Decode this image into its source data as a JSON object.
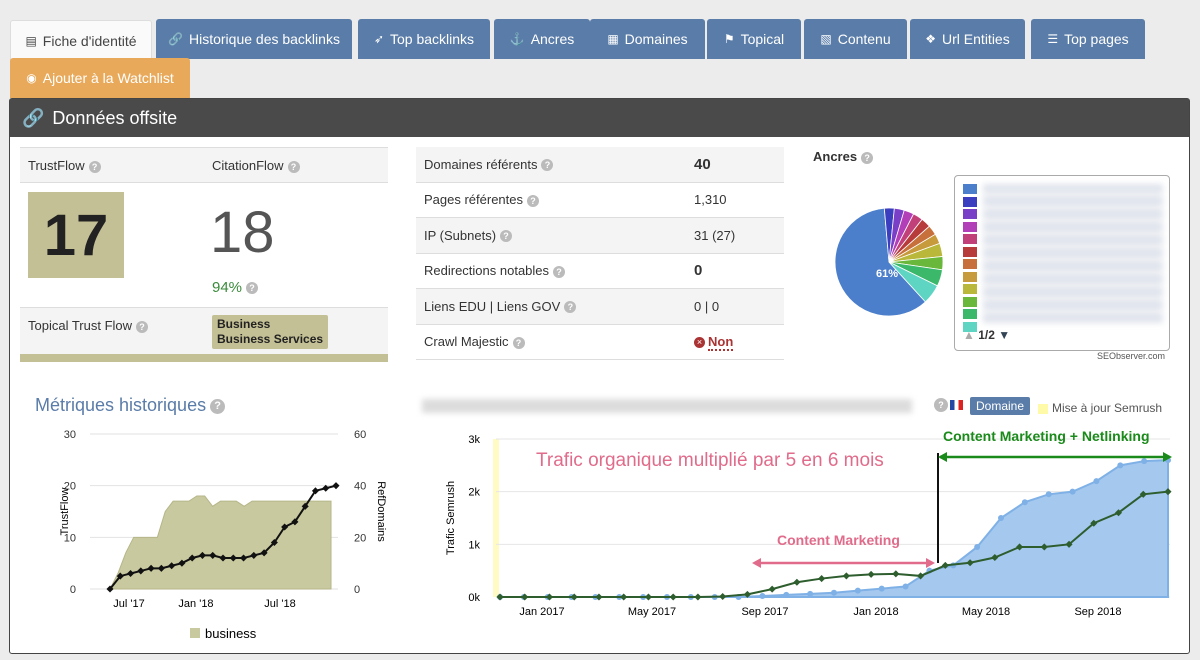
{
  "tabs": [
    {
      "label": "Fiche d'identité",
      "icon": "id-card-icon",
      "glyph": "▤"
    },
    {
      "label": "Historique des backlinks",
      "icon": "link-icon",
      "glyph": "🔗"
    },
    {
      "label": "Top backlinks",
      "icon": "rocket-icon",
      "glyph": "➶"
    },
    {
      "label": "Ancres",
      "icon": "anchor-icon",
      "glyph": "⚓"
    },
    {
      "label": "Domaines",
      "icon": "grid-icon",
      "glyph": "▦"
    },
    {
      "label": "Topical",
      "icon": "flag-icon",
      "glyph": "⚑"
    },
    {
      "label": "Contenu",
      "icon": "document-icon",
      "glyph": "▧"
    },
    {
      "label": "Url Entities",
      "icon": "cubes-icon",
      "glyph": "❖"
    },
    {
      "label": "Top pages",
      "icon": "list-icon",
      "glyph": "☰"
    }
  ],
  "watchlist": {
    "label": "Ajouter à la Watchlist",
    "icon": "eye-icon"
  },
  "panel": {
    "title": "Données offsite"
  },
  "trust": {
    "trustflow_label": "TrustFlow",
    "citationflow_label": "CitationFlow",
    "trustflow": "17",
    "citationflow": "18",
    "ratio": "94%",
    "topical_label": "Topical Trust Flow",
    "topical_1": "Business",
    "topical_2": "Business Services"
  },
  "stats": [
    {
      "label": "Domaines référents",
      "value": "40",
      "bold": true
    },
    {
      "label": "Pages référentes",
      "value": "1,310",
      "bold": false
    },
    {
      "label": "IP (Subnets)",
      "value": "31 (27)",
      "bold": false
    },
    {
      "label": "Redirections notables",
      "value": "0",
      "bold": true
    },
    {
      "label": "Liens EDU | Liens GOV",
      "value": "0 | 0",
      "bold": false
    },
    {
      "label": "Crawl Majestic",
      "value": "Non",
      "bold": false
    }
  ],
  "ancres": {
    "title": "Ancres",
    "pie_label": "61%",
    "pager": "1/2",
    "credit": "SEObserver.com",
    "colors": [
      "#4b7ecb",
      "#3b3fbf",
      "#7a3fc7",
      "#b23fb8",
      "#c2407a",
      "#b83b3b",
      "#c7703b",
      "#c79a3b",
      "#b9b83b",
      "#6ab83b",
      "#3bb86a",
      "#5ed4c2"
    ],
    "slices": [
      61,
      3,
      3,
      3,
      3,
      3,
      3,
      3,
      4,
      4,
      5,
      6
    ]
  },
  "metrics": {
    "title": "Métriques historiques",
    "left_axis_label": "TrustFlow",
    "right_axis_label": "RefDomains",
    "left_ticks": [
      "0",
      "10",
      "20",
      "30"
    ],
    "right_ticks": [
      "0",
      "20",
      "40",
      "60"
    ],
    "x_ticks": [
      "Jul '17",
      "Jan '18",
      "Jul '18"
    ],
    "legend": "business"
  },
  "traffic": {
    "domaine_button": "Domaine",
    "maj_label": "Mise à jour Semrush",
    "y_axis_label": "Trafic Semrush",
    "y_ticks": [
      "0k",
      "1k",
      "2k",
      "3k"
    ],
    "x_ticks": [
      "Jan 2017",
      "May 2017",
      "Sep 2017",
      "Jan 2018",
      "May 2018",
      "Sep 2018"
    ],
    "annotation_main": "Trafic organique multiplié par 5 en 6 mois",
    "annotation_cm": "Content Marketing",
    "annotation_cmn": "Content Marketing + Netlinking"
  },
  "chart_data": [
    {
      "type": "line",
      "title": "Métriques historiques",
      "ylabel": "TrustFlow",
      "y2label": "RefDomains",
      "ylim": [
        0,
        30
      ],
      "y2lim": [
        0,
        60
      ],
      "x_ticks": [
        "Jul '17",
        "Jan '18",
        "Jul '18"
      ],
      "series": [
        {
          "name": "business",
          "kind": "area",
          "axis": "left",
          "values": [
            0,
            3,
            7,
            10,
            10,
            10,
            10,
            15,
            17,
            17,
            17,
            18,
            18,
            16,
            17,
            17,
            17,
            16,
            17,
            17,
            17,
            17,
            17,
            17,
            17,
            17,
            17,
            17,
            17
          ]
        },
        {
          "kind": "line",
          "axis": "right",
          "values": [
            0,
            5,
            6,
            7,
            8,
            8,
            9,
            10,
            12,
            13,
            13,
            12,
            12,
            12,
            13,
            14,
            18,
            24,
            26,
            32,
            38,
            39,
            40
          ]
        }
      ]
    },
    {
      "type": "area",
      "ylabel": "Trafic Semrush",
      "ylim": [
        0,
        3000
      ],
      "x_ticks": [
        "Jan 2017",
        "May 2017",
        "Sep 2017",
        "Jan 2018",
        "May 2018",
        "Sep 2018"
      ],
      "series": [
        {
          "kind": "area",
          "values": [
            0,
            0,
            0,
            0,
            0,
            0,
            0,
            0,
            0,
            0,
            0,
            20,
            40,
            60,
            80,
            120,
            160,
            200,
            500,
            600,
            950,
            1500,
            1800,
            1950,
            2000,
            2200,
            2500,
            2580,
            2600
          ]
        },
        {
          "kind": "line",
          "values": [
            0,
            0,
            0,
            0,
            0,
            0,
            0,
            0,
            0,
            10,
            50,
            150,
            280,
            350,
            400,
            430,
            440,
            400,
            600,
            650,
            750,
            950,
            950,
            1000,
            1400,
            1600,
            1950,
            2000
          ]
        }
      ]
    }
  ]
}
